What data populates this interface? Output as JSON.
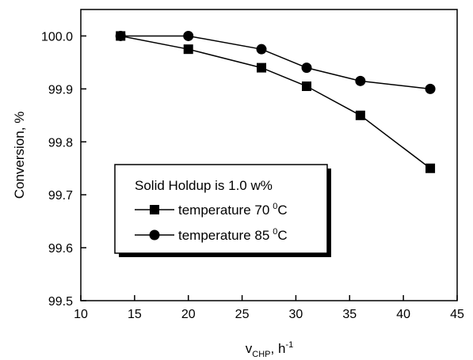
{
  "chart_data": {
    "type": "line",
    "xlabel": "v",
    "xlabel_subscript": "CHP",
    "xlabel_unit": ", h",
    "xlabel_unit_superscript": "-1",
    "ylabel": "Conversion, %",
    "xlim": [
      10,
      45
    ],
    "ylim": [
      99.5,
      100.05
    ],
    "x_ticks": [
      10,
      15,
      20,
      25,
      30,
      35,
      40,
      45
    ],
    "x_tick_labels": [
      "10",
      "15",
      "20",
      "25",
      "30",
      "35",
      "40",
      "45"
    ],
    "y_ticks": [
      99.5,
      99.6,
      99.7,
      99.8,
      99.9,
      100.0
    ],
    "y_tick_labels": [
      "99.5",
      "99.6",
      "99.7",
      "99.8",
      "99.9",
      "100.0"
    ],
    "grid": false,
    "legend": {
      "title": "Solid Holdup is 1.0 w%",
      "position": "lower-left"
    },
    "series": [
      {
        "name": "temperature 70",
        "name_superscript": "0",
        "name_suffix": "C",
        "marker": "square",
        "color": "#000000",
        "x": [
          13.7,
          20,
          26.8,
          31,
          36,
          42.5
        ],
        "y": [
          100.0,
          99.975,
          99.94,
          99.905,
          99.85,
          99.75
        ]
      },
      {
        "name": "temperature 85",
        "name_superscript": "0",
        "name_suffix": "C",
        "marker": "circle",
        "color": "#000000",
        "x": [
          13.7,
          20,
          26.8,
          31,
          36,
          42.5
        ],
        "y": [
          100.0,
          100.0,
          99.975,
          99.94,
          99.915,
          99.9
        ]
      }
    ]
  }
}
